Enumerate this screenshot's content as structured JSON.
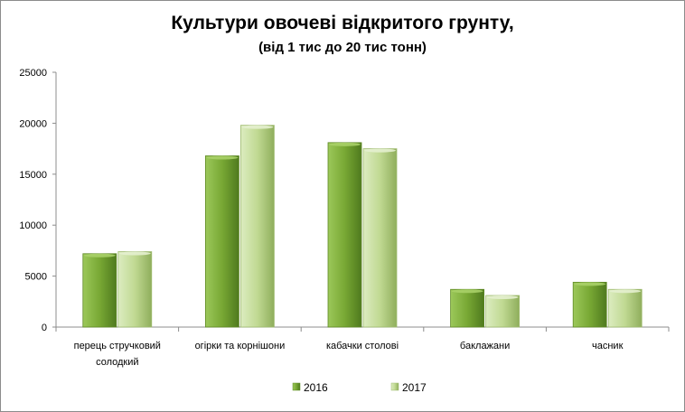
{
  "chart_data": {
    "type": "bar",
    "title": "Культури овочеві відкритого грунту,",
    "subtitle": "(від 1 тис до 20 тис тонн)",
    "categories": [
      "перець стручковий солодкий",
      "огірки та корнішони",
      "кабачки столові",
      "баклажани",
      "часник"
    ],
    "category_lines": [
      [
        "перець стручковий",
        "солодкий"
      ],
      [
        "огірки та корнішони"
      ],
      [
        "кабачки столові"
      ],
      [
        "баклажани"
      ],
      [
        "часник"
      ]
    ],
    "series": [
      {
        "name": "2016",
        "values": [
          7200,
          16800,
          18100,
          3700,
          4400
        ],
        "color": "#76a632"
      },
      {
        "name": "2017",
        "values": [
          7400,
          19800,
          17500,
          3100,
          3700
        ],
        "color": "#c3dc96"
      }
    ],
    "yticks": [
      "0",
      "5000",
      "10000",
      "15000",
      "20000",
      "25000"
    ],
    "ylim": [
      0,
      25000
    ],
    "legend_position": "bottom",
    "grid": false
  }
}
